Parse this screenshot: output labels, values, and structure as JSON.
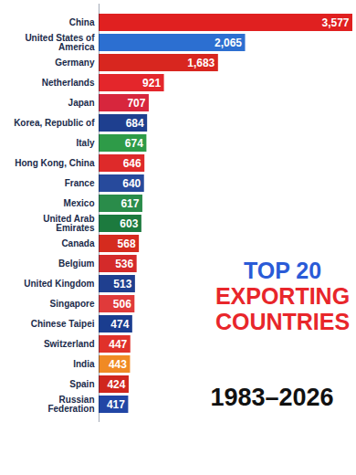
{
  "chart_data": {
    "type": "bar",
    "orientation": "horizontal",
    "title": "TOP 20 EXPORTING COUNTRIES",
    "subtitle": "1983–2026",
    "categories": [
      "China",
      "United States of America",
      "Germany",
      "Netherlands",
      "Japan",
      "Korea, Republic of",
      "Italy",
      "Hong Kong, China",
      "France",
      "Mexico",
      "United Arab Emirates",
      "Canada",
      "Belgium",
      "United Kingdom",
      "Singapore",
      "Chinese Taipei",
      "Switzerland",
      "India",
      "Spain",
      "Russian Federation"
    ],
    "values": [
      3577,
      2065,
      1683,
      921,
      707,
      684,
      674,
      646,
      640,
      617,
      603,
      568,
      536,
      513,
      506,
      474,
      447,
      443,
      424,
      417
    ],
    "value_labels": [
      "3,577",
      "2,065",
      "1,683",
      "921",
      "707",
      "684",
      "674",
      "646",
      "640",
      "617",
      "603",
      "568",
      "536",
      "513",
      "506",
      "474",
      "447",
      "443",
      "424",
      "417"
    ],
    "colors": [
      "#e02020",
      "#2c6fd1",
      "#d8261f",
      "#e4262b",
      "#d7263d",
      "#1e3f8f",
      "#2e9b48",
      "#de2a2a",
      "#274a9c",
      "#2a8c4a",
      "#1c7a3e",
      "#d52b1e",
      "#d42a2a",
      "#1f3f8f",
      "#e03a3a",
      "#1a3d8f",
      "#e0312a",
      "#f08a24",
      "#d0261d",
      "#2146a5"
    ],
    "xlim": [
      0,
      3577
    ],
    "grid": false,
    "data_labels": true,
    "tick_labels": "y"
  }
}
